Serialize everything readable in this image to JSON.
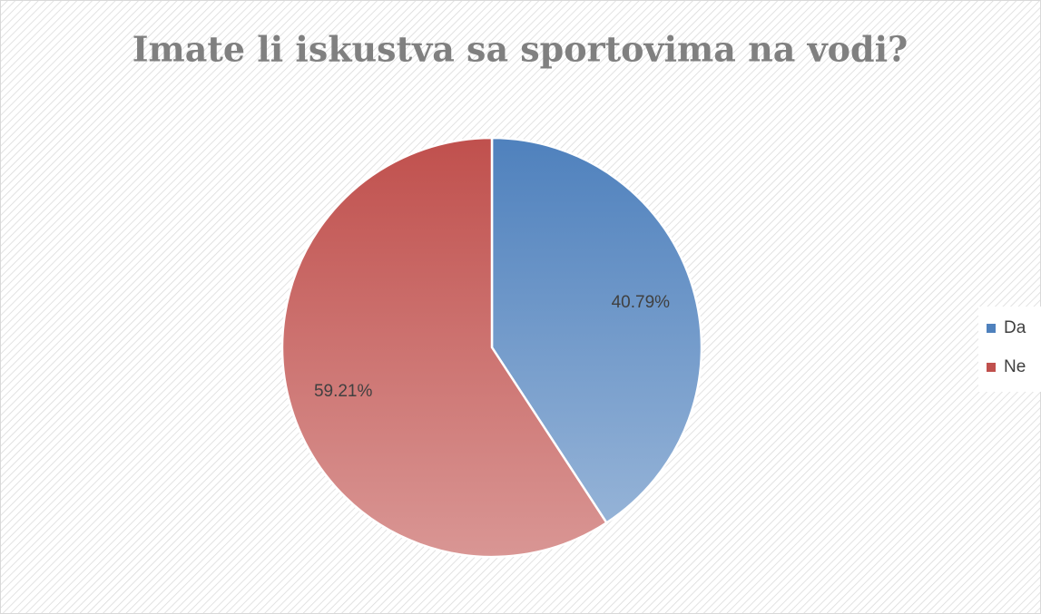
{
  "chart_data": {
    "type": "pie",
    "title": "Imate li iskustva sa sportovima na vodi?",
    "categories": [
      "Da",
      "Ne"
    ],
    "values": [
      40.79,
      59.21
    ],
    "value_labels": [
      "40.79%",
      "59.21%"
    ],
    "colors": [
      "#4f81bd",
      "#c0504d"
    ],
    "legend": "right"
  }
}
